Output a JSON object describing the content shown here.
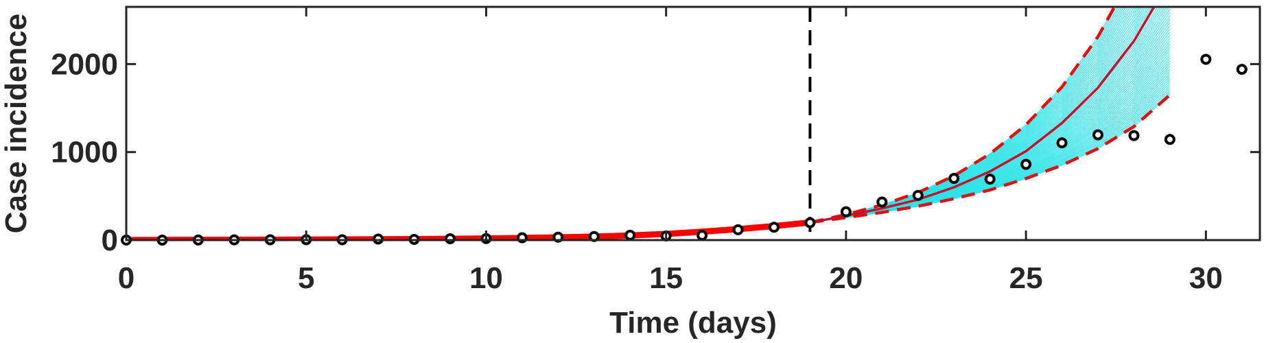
{
  "chart_data": {
    "type": "line",
    "xlabel": "Time (days)",
    "ylabel": "Case incidence",
    "xlim": [
      0,
      31.5
    ],
    "ylim": [
      0,
      2650
    ],
    "xticks": [
      0,
      5,
      10,
      15,
      20,
      25,
      30
    ],
    "yticks": [
      0,
      1000,
      2000
    ],
    "grid": false,
    "forecast_start": 19,
    "colors": {
      "observed": "#000000",
      "fit": "#ff0000",
      "mean_forecast": "#c8102e",
      "bounds": "#e01010",
      "ensemble": "#2be3e8",
      "axis": "#262626"
    },
    "observed": {
      "x": [
        0,
        1,
        2,
        3,
        4,
        5,
        6,
        7,
        8,
        9,
        10,
        11,
        12,
        13,
        14,
        15,
        16,
        17,
        18,
        19,
        20,
        21,
        22,
        23,
        24,
        25,
        26,
        27,
        28,
        29,
        30,
        31
      ],
      "y": [
        1,
        0,
        1,
        3,
        4,
        5,
        4,
        12,
        8,
        16,
        18,
        27,
        33,
        41,
        56,
        47,
        54,
        118,
        146,
        198,
        322,
        433,
        508,
        701,
        693,
        861,
        1105,
        1196,
        1188,
        1144,
        2054,
        1940
      ]
    },
    "fit": {
      "x": [
        0,
        1,
        2,
        3,
        4,
        5,
        6,
        7,
        8,
        9,
        10,
        11,
        12,
        13,
        14,
        15,
        16,
        17,
        18,
        19
      ],
      "y": [
        1,
        2,
        3,
        4,
        5,
        6,
        8,
        10,
        12,
        15,
        19,
        24,
        31,
        40,
        52,
        70,
        95,
        125,
        160,
        200
      ]
    },
    "forecast": {
      "x": [
        19,
        20,
        21,
        22,
        23,
        24,
        25,
        26,
        27,
        28,
        29
      ],
      "mean": [
        200,
        275,
        360,
        460,
        600,
        780,
        1010,
        1330,
        1730,
        2260,
        2960
      ],
      "lower": [
        200,
        255,
        315,
        385,
        470,
        570,
        700,
        850,
        1040,
        1290,
        1650
      ],
      "upper": [
        200,
        290,
        400,
        540,
        730,
        980,
        1310,
        1740,
        2310,
        3050,
        4000
      ],
      "ensemble_count": 60
    }
  }
}
